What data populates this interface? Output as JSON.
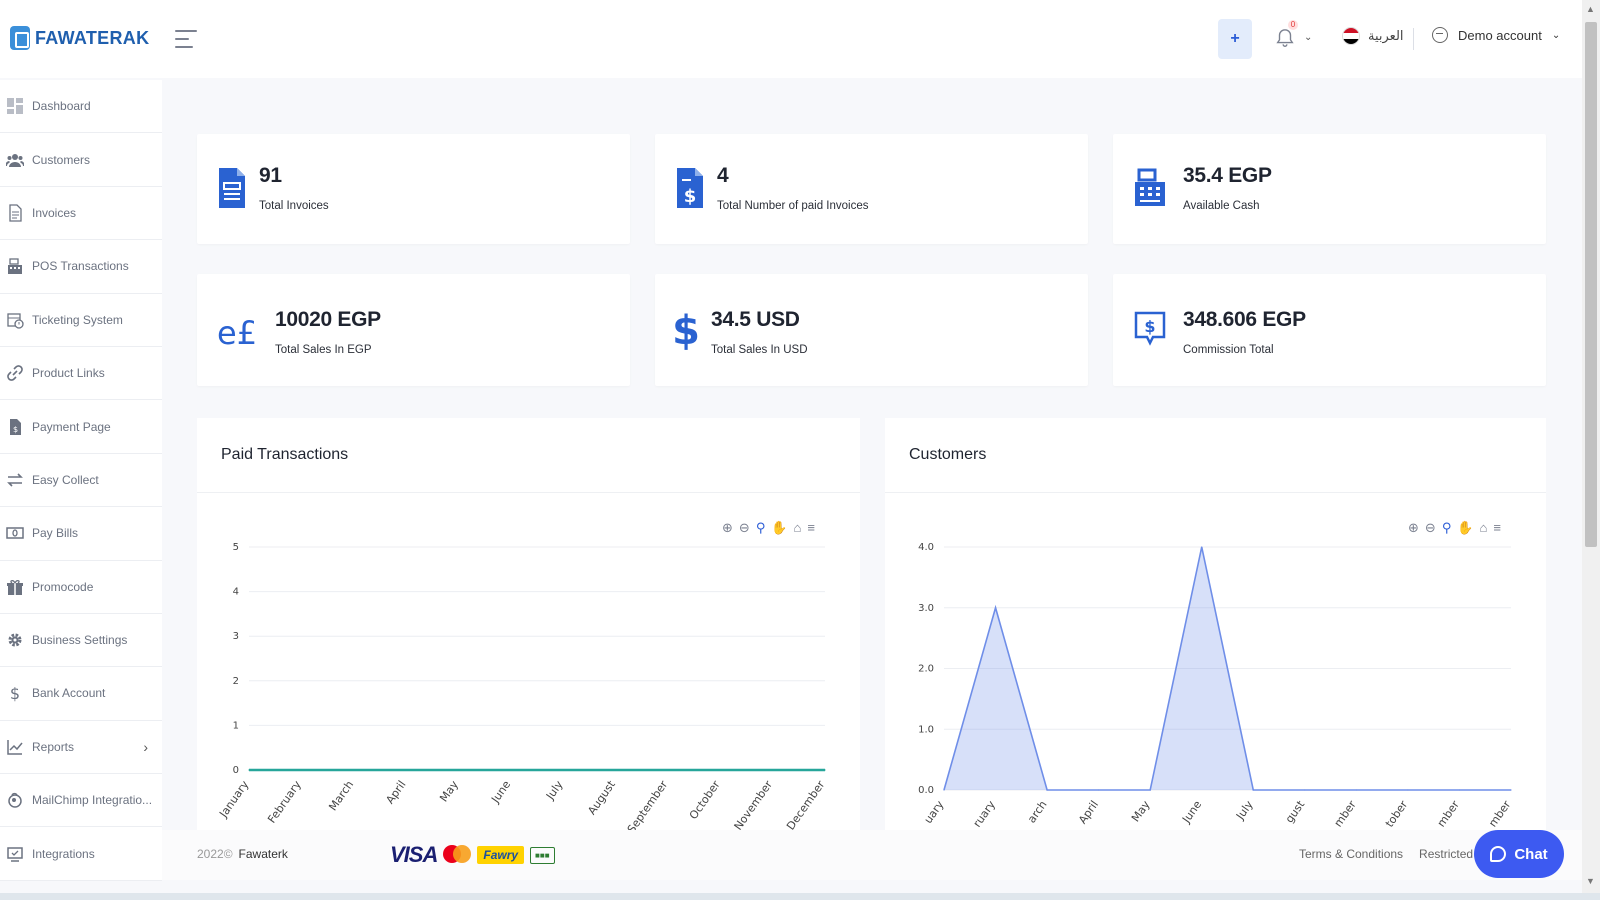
{
  "app": {
    "logo_text": "FAWATERAK"
  },
  "header": {
    "add_label": "+",
    "notifications_count": "0",
    "language": "العربية",
    "account": "Demo account"
  },
  "sidebar": {
    "items": [
      {
        "label": "Dashboard",
        "icon": "dashboard-icon"
      },
      {
        "label": "Customers",
        "icon": "customers-icon"
      },
      {
        "label": "Invoices",
        "icon": "invoice-icon"
      },
      {
        "label": "POS Transactions",
        "icon": "cash-register-icon"
      },
      {
        "label": "Ticketing System",
        "icon": "ticket-icon"
      },
      {
        "label": "Product Links",
        "icon": "link-icon"
      },
      {
        "label": "Payment Page",
        "icon": "payment-page-icon"
      },
      {
        "label": "Easy Collect",
        "icon": "exchange-icon"
      },
      {
        "label": "Pay Bills",
        "icon": "bill-icon"
      },
      {
        "label": "Promocode",
        "icon": "gift-icon"
      },
      {
        "label": "Business Settings",
        "icon": "gear-icon"
      },
      {
        "label": "Bank Account",
        "icon": "dollar-icon"
      },
      {
        "label": "Reports",
        "icon": "chart-line-icon"
      },
      {
        "label": "MailChimp Integratio...",
        "icon": "mailchimp-icon"
      },
      {
        "label": "Integrations",
        "icon": "integrations-icon"
      }
    ]
  },
  "stats": [
    {
      "value": "91",
      "label": "Total Invoices",
      "icon": "invoice-icon"
    },
    {
      "value": "4",
      "label": "Total Number of paid Invoices",
      "icon": "paid-invoice-icon"
    },
    {
      "value": "35.4 EGP",
      "label": "Available Cash",
      "icon": "cash-register-icon"
    },
    {
      "value": "10020 EGP",
      "label": "Total Sales In EGP",
      "icon": "egp-icon"
    },
    {
      "value": "34.5 USD",
      "label": "Total Sales In USD",
      "icon": "dollar-icon"
    },
    {
      "value": "348.606 EGP",
      "label": "Commission Total",
      "icon": "commission-icon"
    }
  ],
  "chart_data": [
    {
      "type": "line",
      "title": "Paid Transactions",
      "categories": [
        "January",
        "February",
        "March",
        "April",
        "May",
        "June",
        "July",
        "August",
        "September",
        "October",
        "November",
        "December"
      ],
      "series": [
        {
          "values": [
            0,
            0,
            0,
            0,
            0,
            0,
            0,
            0,
            0,
            0,
            0,
            0
          ]
        }
      ],
      "ylim": [
        0,
        5
      ],
      "yticks": [
        "0",
        "1",
        "2",
        "3",
        "4",
        "5"
      ],
      "color": "#26a69a",
      "grid": true
    },
    {
      "type": "area",
      "title": "Customers",
      "categories": [
        "uary",
        "ruary",
        "arch",
        "April",
        "May",
        "June",
        "July",
        "gust",
        "mber",
        "tober",
        "mber",
        "mber"
      ],
      "series": [
        {
          "values": [
            0,
            3,
            0,
            0,
            0,
            4,
            0,
            0,
            0,
            0,
            0,
            0
          ]
        }
      ],
      "ylim": [
        0,
        4
      ],
      "yticks": [
        "0.0",
        "1.0",
        "2.0",
        "3.0",
        "4.0"
      ],
      "color": "#6f8ee8",
      "grid": true
    }
  ],
  "footer": {
    "copyright_year": "2022©",
    "company": "Fawaterk",
    "visa": "VISA",
    "fawry": "Fawry",
    "terms": "Terms & Conditions",
    "restricted": "Restricted"
  },
  "chat": {
    "label": "Chat"
  }
}
